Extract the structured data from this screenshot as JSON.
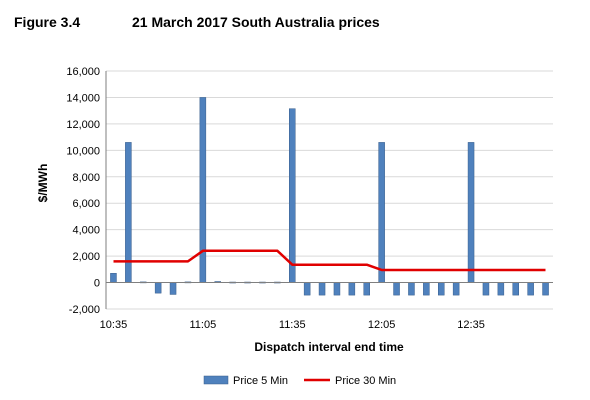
{
  "figure": {
    "label": "Figure 3.4",
    "title": "21 March 2017 South Australia prices"
  },
  "colors": {
    "bar": "#4f81bd",
    "bar_edge": "#385d8a",
    "line": "#e00000",
    "grid": "#d9d9d9",
    "axis": "#7f7f7f"
  },
  "chart_data": {
    "type": "bar",
    "title": "21 March 2017 South Australia prices",
    "xlabel": "Dispatch interval end time",
    "ylabel": "$/MWh",
    "ylim": [
      -2000,
      16000
    ],
    "y_ticks": [
      "-2,000",
      "0",
      "2,000",
      "4,000",
      "6,000",
      "8,000",
      "10,000",
      "12,000",
      "14,000",
      "16,000"
    ],
    "y_tick_values": [
      -2000,
      0,
      2000,
      4000,
      6000,
      8000,
      10000,
      12000,
      14000,
      16000
    ],
    "x_tick_labels": [
      "10:35",
      "11:05",
      "11:35",
      "12:05",
      "12:35"
    ],
    "x_tick_index": [
      0,
      6,
      12,
      18,
      24
    ],
    "grid": true,
    "legend_position": "bottom",
    "categories": [
      "10:35",
      "10:40",
      "10:45",
      "10:50",
      "10:55",
      "11:00",
      "11:05",
      "11:10",
      "11:15",
      "11:20",
      "11:25",
      "11:30",
      "11:35",
      "11:40",
      "11:45",
      "11:50",
      "11:55",
      "12:00",
      "12:05",
      "12:10",
      "12:15",
      "12:20",
      "12:25",
      "12:30",
      "12:35",
      "12:40",
      "12:45",
      "12:50",
      "12:55",
      "13:00"
    ],
    "series": [
      {
        "name": "Price 5 Min",
        "type": "bar",
        "values": [
          700,
          10600,
          50,
          -800,
          -900,
          50,
          14000,
          80,
          40,
          40,
          40,
          40,
          13150,
          -950,
          -950,
          -950,
          -950,
          -950,
          10600,
          -950,
          -950,
          -950,
          -950,
          -950,
          10600,
          -950,
          -950,
          -950,
          -950,
          -950
        ]
      },
      {
        "name": "Price 30 Min",
        "type": "line",
        "values": [
          1600,
          1600,
          1600,
          1600,
          1600,
          1600,
          2400,
          2400,
          2400,
          2400,
          2400,
          2400,
          1350,
          1350,
          1350,
          1350,
          1350,
          1350,
          950,
          950,
          950,
          950,
          950,
          950,
          950,
          950,
          950,
          950,
          950,
          950
        ]
      }
    ]
  }
}
